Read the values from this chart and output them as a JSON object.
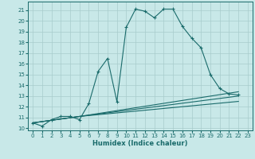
{
  "xlabel": "Humidex (Indice chaleur)",
  "ylabel": "",
  "bg_color": "#c8e8e8",
  "line_color": "#1a6b6b",
  "grid_color": "#a8cccc",
  "ylim": [
    9.8,
    21.8
  ],
  "xlim": [
    -0.5,
    23.5
  ],
  "yticks": [
    10,
    11,
    12,
    13,
    14,
    15,
    16,
    17,
    18,
    19,
    20,
    21
  ],
  "xticks": [
    0,
    1,
    2,
    3,
    4,
    5,
    6,
    7,
    8,
    9,
    10,
    11,
    12,
    13,
    14,
    15,
    16,
    17,
    18,
    19,
    20,
    21,
    22,
    23
  ],
  "series": [
    {
      "x": [
        0,
        1,
        2,
        3,
        4,
        5,
        6,
        7,
        8,
        9,
        10,
        11,
        12,
        13,
        14,
        15,
        16,
        17,
        18,
        19,
        20,
        21,
        22
      ],
      "y": [
        10.5,
        10.2,
        10.8,
        11.1,
        11.1,
        10.8,
        12.3,
        15.3,
        16.5,
        12.5,
        19.4,
        21.1,
        20.9,
        20.3,
        21.1,
        21.1,
        19.5,
        18.4,
        17.5,
        15.0,
        13.7,
        13.2,
        13.1
      ],
      "marker": "+"
    },
    {
      "x": [
        0,
        5,
        22
      ],
      "y": [
        10.5,
        11.1,
        13.4
      ],
      "marker": null
    },
    {
      "x": [
        0,
        5,
        22
      ],
      "y": [
        10.5,
        11.1,
        13.0
      ],
      "marker": null
    },
    {
      "x": [
        0,
        5,
        22
      ],
      "y": [
        10.5,
        11.1,
        12.5
      ],
      "marker": null
    }
  ]
}
